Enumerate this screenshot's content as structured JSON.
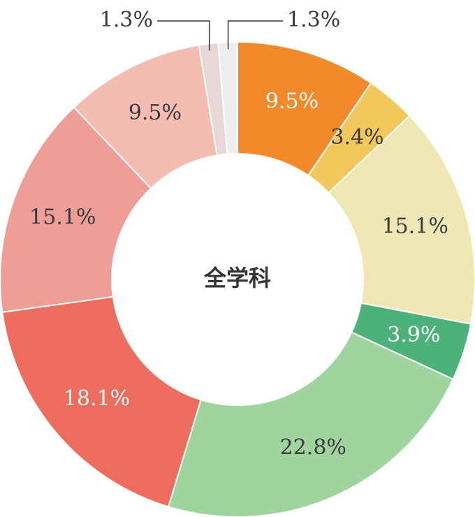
{
  "chart_data": {
    "type": "pie",
    "donut": true,
    "title": "",
    "center_label": "全学科",
    "start_angle_deg": 0,
    "direction": "clockwise",
    "legend": "none",
    "slices": [
      {
        "value": 9.5,
        "label": "9.5%",
        "color": "#F2892A",
        "text_color": "#ffffff"
      },
      {
        "value": 3.4,
        "label": "3.4%",
        "color": "#F2C75C",
        "text_color": "#3a3a3a"
      },
      {
        "value": 15.1,
        "label": "15.1%",
        "color": "#EFE7B4",
        "text_color": "#3a3a3a"
      },
      {
        "value": 3.9,
        "label": "3.9%",
        "color": "#4CB27A",
        "text_color": "#ffffff"
      },
      {
        "value": 22.8,
        "label": "22.8%",
        "color": "#A0D49E",
        "text_color": "#3a3a3a"
      },
      {
        "value": 18.1,
        "label": "18.1%",
        "color": "#EC6C5E",
        "text_color": "#ffffff"
      },
      {
        "value": 15.1,
        "label": "15.1%",
        "color": "#EE9E96",
        "text_color": "#3a3a3a"
      },
      {
        "value": 9.5,
        "label": "9.5%",
        "color": "#F5BCB1",
        "text_color": "#3a3a3a"
      },
      {
        "value": 1.3,
        "label": "1.3%",
        "color": "#E8D7D7",
        "text_color": "#3a3a3a",
        "callout": "left"
      },
      {
        "value": 1.3,
        "label": "1.3%",
        "color": "#EEEEEE",
        "text_color": "#3a3a3a",
        "callout": "right"
      }
    ]
  }
}
